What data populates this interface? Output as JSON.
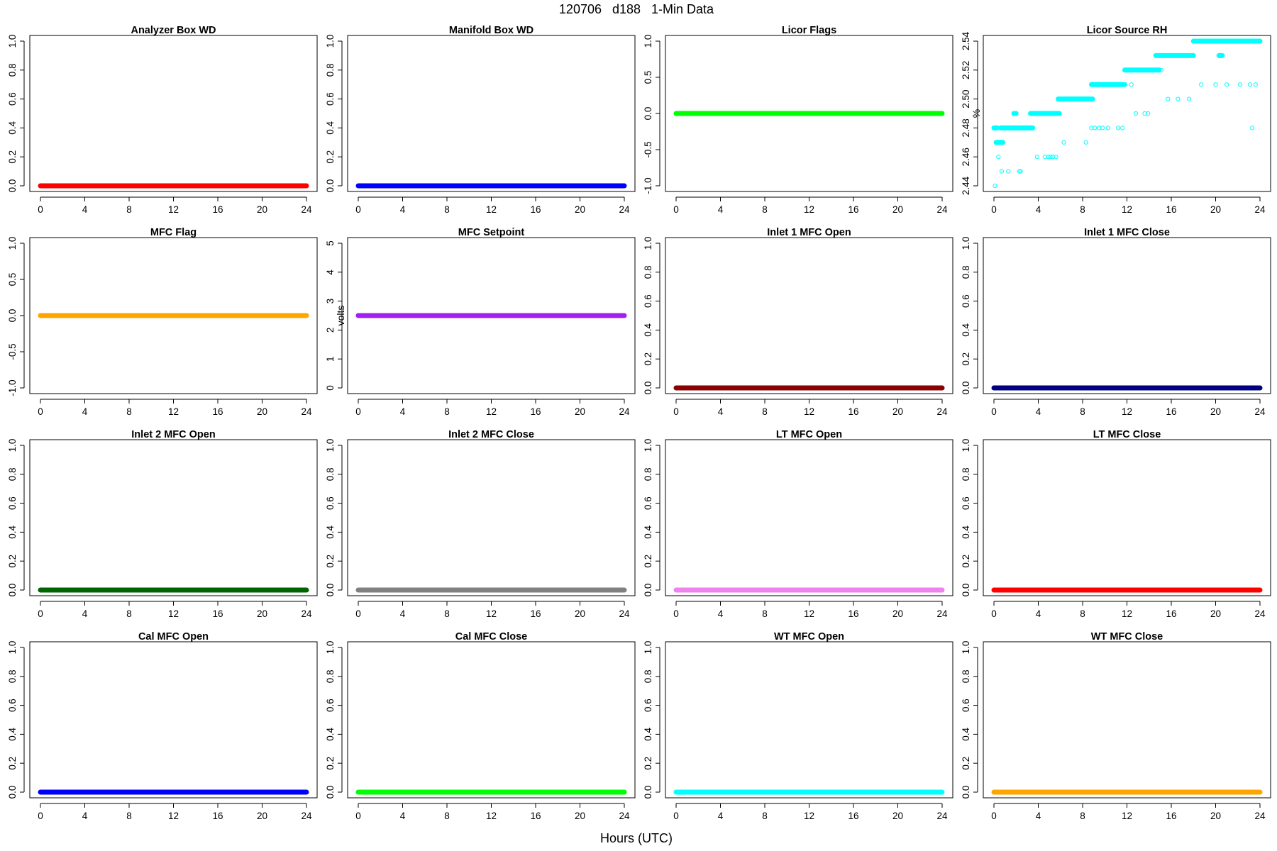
{
  "figure": {
    "main_title": "120706   d188   1-Min Data",
    "x_axis_label": "Hours (UTC)"
  },
  "chart_data": [
    {
      "type": "line",
      "title": "Analyzer Box WD",
      "xlabel": "",
      "ylabel": "",
      "xlim": [
        0,
        24
      ],
      "ylim": [
        0,
        1
      ],
      "xticks": [
        0,
        4,
        8,
        12,
        16,
        20,
        24
      ],
      "yticks": [
        "0.0",
        "0.2",
        "0.4",
        "0.6",
        "0.8",
        "1.0"
      ],
      "color": "#ff0000",
      "series": [
        {
          "x": [
            0,
            24
          ],
          "values": [
            0,
            0
          ]
        }
      ]
    },
    {
      "type": "line",
      "title": "Manifold Box WD",
      "xlabel": "",
      "ylabel": "",
      "xlim": [
        0,
        24
      ],
      "ylim": [
        0,
        1
      ],
      "xticks": [
        0,
        4,
        8,
        12,
        16,
        20,
        24
      ],
      "yticks": [
        "0.0",
        "0.2",
        "0.4",
        "0.6",
        "0.8",
        "1.0"
      ],
      "color": "#0000ff",
      "series": [
        {
          "x": [
            0,
            24
          ],
          "values": [
            0,
            0
          ]
        }
      ]
    },
    {
      "type": "line",
      "title": "Licor Flags",
      "xlabel": "",
      "ylabel": "",
      "xlim": [
        0,
        24
      ],
      "ylim": [
        -1,
        1
      ],
      "xticks": [
        0,
        4,
        8,
        12,
        16,
        20,
        24
      ],
      "yticks": [
        "-1.0",
        "-0.5",
        "0.0",
        "0.5",
        "1.0"
      ],
      "color": "#00ff00",
      "series": [
        {
          "x": [
            0,
            24
          ],
          "values": [
            0,
            0
          ]
        }
      ]
    },
    {
      "type": "scatter",
      "title": "Licor Source RH",
      "xlabel": "",
      "ylabel": "%",
      "xlim": [
        0,
        24
      ],
      "ylim": [
        2.44,
        2.54
      ],
      "xticks": [
        0,
        4,
        8,
        12,
        16,
        20,
        24
      ],
      "yticks": [
        "2.44",
        "2.46",
        "2.48",
        "2.50",
        "2.52",
        "2.54"
      ],
      "color": "#00ffff",
      "bands": [
        {
          "x0": 0.0,
          "x1": 0.3,
          "y": 2.48
        },
        {
          "x0": 0.2,
          "x1": 0.8,
          "y": 2.47
        },
        {
          "x0": 0.6,
          "x1": 3.5,
          "y": 2.48
        },
        {
          "x0": 1.8,
          "x1": 2.0,
          "y": 2.49
        },
        {
          "x0": 3.3,
          "x1": 5.9,
          "y": 2.49
        },
        {
          "x0": 5.8,
          "x1": 8.9,
          "y": 2.5
        },
        {
          "x0": 8.8,
          "x1": 11.8,
          "y": 2.51
        },
        {
          "x0": 11.8,
          "x1": 14.9,
          "y": 2.52
        },
        {
          "x0": 14.6,
          "x1": 18.0,
          "y": 2.53
        },
        {
          "x0": 18.0,
          "x1": 24.0,
          "y": 2.54
        },
        {
          "x0": 20.3,
          "x1": 20.6,
          "y": 2.53
        }
      ],
      "points": [
        {
          "x": 0.1,
          "y": 2.44
        },
        {
          "x": 0.4,
          "y": 2.46
        },
        {
          "x": 0.7,
          "y": 2.45
        },
        {
          "x": 1.3,
          "y": 2.45
        },
        {
          "x": 2.3,
          "y": 2.45
        },
        {
          "x": 2.4,
          "y": 2.45
        },
        {
          "x": 3.9,
          "y": 2.46
        },
        {
          "x": 4.6,
          "y": 2.46
        },
        {
          "x": 4.9,
          "y": 2.46
        },
        {
          "x": 5.1,
          "y": 2.46
        },
        {
          "x": 5.3,
          "y": 2.46
        },
        {
          "x": 5.6,
          "y": 2.46
        },
        {
          "x": 6.3,
          "y": 2.47
        },
        {
          "x": 8.3,
          "y": 2.47
        },
        {
          "x": 8.8,
          "y": 2.48
        },
        {
          "x": 9.1,
          "y": 2.48
        },
        {
          "x": 9.5,
          "y": 2.48
        },
        {
          "x": 9.8,
          "y": 2.48
        },
        {
          "x": 10.3,
          "y": 2.48
        },
        {
          "x": 11.2,
          "y": 2.48
        },
        {
          "x": 11.6,
          "y": 2.48
        },
        {
          "x": 12.4,
          "y": 2.51
        },
        {
          "x": 12.8,
          "y": 2.49
        },
        {
          "x": 13.6,
          "y": 2.49
        },
        {
          "x": 13.9,
          "y": 2.49
        },
        {
          "x": 15.1,
          "y": 2.52
        },
        {
          "x": 15.7,
          "y": 2.5
        },
        {
          "x": 16.6,
          "y": 2.5
        },
        {
          "x": 17.6,
          "y": 2.5
        },
        {
          "x": 18.7,
          "y": 2.51
        },
        {
          "x": 20.0,
          "y": 2.51
        },
        {
          "x": 21.0,
          "y": 2.51
        },
        {
          "x": 22.2,
          "y": 2.51
        },
        {
          "x": 23.1,
          "y": 2.51
        },
        {
          "x": 23.3,
          "y": 2.48
        },
        {
          "x": 23.6,
          "y": 2.51
        }
      ]
    },
    {
      "type": "line",
      "title": "MFC Flag",
      "xlabel": "",
      "ylabel": "",
      "xlim": [
        0,
        24
      ],
      "ylim": [
        -1,
        1
      ],
      "xticks": [
        0,
        4,
        8,
        12,
        16,
        20,
        24
      ],
      "yticks": [
        "-1.0",
        "-0.5",
        "0.0",
        "0.5",
        "1.0"
      ],
      "color": "#ffa500",
      "series": [
        {
          "x": [
            0,
            24
          ],
          "values": [
            0,
            0
          ]
        }
      ]
    },
    {
      "type": "line",
      "title": "MFC Setpoint",
      "xlabel": "",
      "ylabel": "volts",
      "xlim": [
        0,
        24
      ],
      "ylim": [
        0,
        5
      ],
      "xticks": [
        0,
        4,
        8,
        12,
        16,
        20,
        24
      ],
      "yticks": [
        "0",
        "1",
        "2",
        "3",
        "4",
        "5"
      ],
      "color": "#a020f0",
      "series": [
        {
          "x": [
            0,
            24
          ],
          "values": [
            2.5,
            2.5
          ]
        }
      ]
    },
    {
      "type": "line",
      "title": "Inlet 1 MFC Open",
      "xlabel": "",
      "ylabel": "",
      "xlim": [
        0,
        24
      ],
      "ylim": [
        0,
        1
      ],
      "xticks": [
        0,
        4,
        8,
        12,
        16,
        20,
        24
      ],
      "yticks": [
        "0.0",
        "0.2",
        "0.4",
        "0.6",
        "0.8",
        "1.0"
      ],
      "color": "#8b0000",
      "series": [
        {
          "x": [
            0,
            24
          ],
          "values": [
            0,
            0
          ]
        }
      ]
    },
    {
      "type": "line",
      "title": "Inlet 1 MFC Close",
      "xlabel": "",
      "ylabel": "",
      "xlim": [
        0,
        24
      ],
      "ylim": [
        0,
        1
      ],
      "xticks": [
        0,
        4,
        8,
        12,
        16,
        20,
        24
      ],
      "yticks": [
        "0.0",
        "0.2",
        "0.4",
        "0.6",
        "0.8",
        "1.0"
      ],
      "color": "#000080",
      "series": [
        {
          "x": [
            0,
            24
          ],
          "values": [
            0,
            0
          ]
        }
      ]
    },
    {
      "type": "line",
      "title": "Inlet 2 MFC Open",
      "xlabel": "",
      "ylabel": "",
      "xlim": [
        0,
        24
      ],
      "ylim": [
        0,
        1
      ],
      "xticks": [
        0,
        4,
        8,
        12,
        16,
        20,
        24
      ],
      "yticks": [
        "0.0",
        "0.2",
        "0.4",
        "0.6",
        "0.8",
        "1.0"
      ],
      "color": "#006400",
      "series": [
        {
          "x": [
            0,
            24
          ],
          "values": [
            0,
            0
          ]
        }
      ]
    },
    {
      "type": "line",
      "title": "Inlet 2 MFC Close",
      "xlabel": "",
      "ylabel": "",
      "xlim": [
        0,
        24
      ],
      "ylim": [
        0,
        1
      ],
      "xticks": [
        0,
        4,
        8,
        12,
        16,
        20,
        24
      ],
      "yticks": [
        "0.0",
        "0.2",
        "0.4",
        "0.6",
        "0.8",
        "1.0"
      ],
      "color": "#808080",
      "series": [
        {
          "x": [
            0,
            24
          ],
          "values": [
            0,
            0
          ]
        }
      ]
    },
    {
      "type": "line",
      "title": "LT MFC Open",
      "xlabel": "",
      "ylabel": "",
      "xlim": [
        0,
        24
      ],
      "ylim": [
        0,
        1
      ],
      "xticks": [
        0,
        4,
        8,
        12,
        16,
        20,
        24
      ],
      "yticks": [
        "0.0",
        "0.2",
        "0.4",
        "0.6",
        "0.8",
        "1.0"
      ],
      "color": "#ee82ee",
      "series": [
        {
          "x": [
            0,
            24
          ],
          "values": [
            0,
            0
          ]
        }
      ]
    },
    {
      "type": "line",
      "title": "LT MFC Close",
      "xlabel": "",
      "ylabel": "",
      "xlim": [
        0,
        24
      ],
      "ylim": [
        0,
        1
      ],
      "xticks": [
        0,
        4,
        8,
        12,
        16,
        20,
        24
      ],
      "yticks": [
        "0.0",
        "0.2",
        "0.4",
        "0.6",
        "0.8",
        "1.0"
      ],
      "color": "#ff0000",
      "series": [
        {
          "x": [
            0,
            24
          ],
          "values": [
            0,
            0
          ]
        }
      ]
    },
    {
      "type": "line",
      "title": "Cal MFC Open",
      "xlabel": "",
      "ylabel": "",
      "xlim": [
        0,
        24
      ],
      "ylim": [
        0,
        1
      ],
      "xticks": [
        0,
        4,
        8,
        12,
        16,
        20,
        24
      ],
      "yticks": [
        "0.0",
        "0.2",
        "0.4",
        "0.6",
        "0.8",
        "1.0"
      ],
      "color": "#0000ff",
      "series": [
        {
          "x": [
            0,
            24
          ],
          "values": [
            0,
            0
          ]
        }
      ]
    },
    {
      "type": "line",
      "title": "Cal MFC Close",
      "xlabel": "",
      "ylabel": "",
      "xlim": [
        0,
        24
      ],
      "ylim": [
        0,
        1
      ],
      "xticks": [
        0,
        4,
        8,
        12,
        16,
        20,
        24
      ],
      "yticks": [
        "0.0",
        "0.2",
        "0.4",
        "0.6",
        "0.8",
        "1.0"
      ],
      "color": "#00ff00",
      "series": [
        {
          "x": [
            0,
            24
          ],
          "values": [
            0,
            0
          ]
        }
      ]
    },
    {
      "type": "line",
      "title": "WT MFC Open",
      "xlabel": "",
      "ylabel": "",
      "xlim": [
        0,
        24
      ],
      "ylim": [
        0,
        1
      ],
      "xticks": [
        0,
        4,
        8,
        12,
        16,
        20,
        24
      ],
      "yticks": [
        "0.0",
        "0.2",
        "0.4",
        "0.6",
        "0.8",
        "1.0"
      ],
      "color": "#00ffff",
      "series": [
        {
          "x": [
            0,
            24
          ],
          "values": [
            0,
            0
          ]
        }
      ]
    },
    {
      "type": "line",
      "title": "WT MFC Close",
      "xlabel": "",
      "ylabel": "",
      "xlim": [
        0,
        24
      ],
      "ylim": [
        0,
        1
      ],
      "xticks": [
        0,
        4,
        8,
        12,
        16,
        20,
        24
      ],
      "yticks": [
        "0.0",
        "0.2",
        "0.4",
        "0.6",
        "0.8",
        "1.0"
      ],
      "color": "#ffa500",
      "series": [
        {
          "x": [
            0,
            24
          ],
          "values": [
            0,
            0
          ]
        }
      ]
    }
  ]
}
